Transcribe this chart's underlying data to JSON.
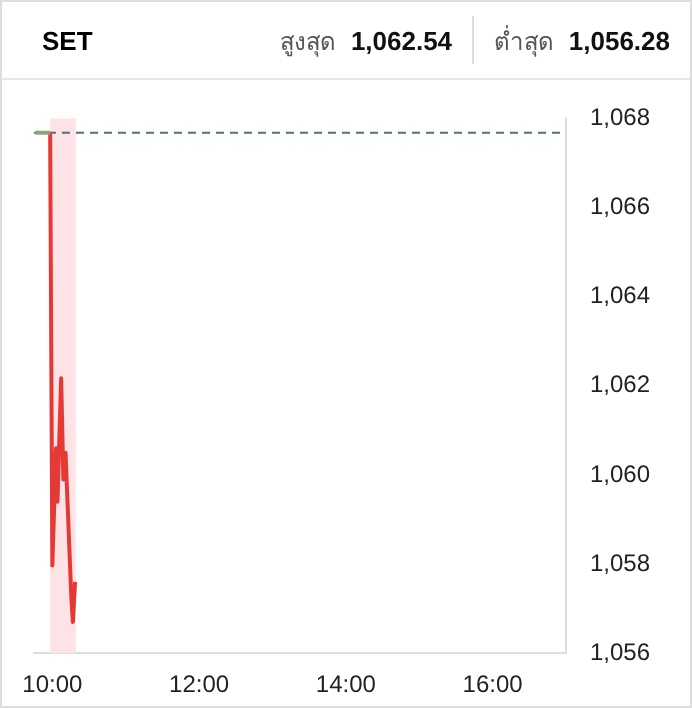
{
  "chart_data": {
    "type": "line",
    "title": "SET",
    "annotations": [
      "สูงสุด 1,062.54",
      "ต่ำสุด 1,056.28"
    ],
    "series": [
      {
        "color": "#8fa67a",
        "x": [
          9.77,
          9.97
        ],
        "values": [
          1067.68,
          1067.68
        ]
      },
      {
        "color": "#e53935",
        "x": [
          9.97,
          10.0,
          10.05,
          10.07,
          10.12,
          10.15,
          10.18,
          10.26,
          10.28,
          10.31
        ],
        "values": [
          1067.68,
          1057.97,
          1060.6,
          1059.4,
          1062.17,
          1059.9,
          1060.5,
          1057.2,
          1056.7,
          1057.6
        ]
      }
    ],
    "xlim": [
      9.75,
      17
    ],
    "xticks": [
      {
        "value": 10,
        "label": "10:00"
      },
      {
        "value": 12,
        "label": "12:00"
      },
      {
        "value": 14,
        "label": "14:00"
      },
      {
        "value": 16,
        "label": "16:00"
      }
    ],
    "ylim": [
      1056,
      1068
    ],
    "yticks": [
      {
        "value": 1056,
        "label": "1,056"
      },
      {
        "value": 1058,
        "label": "1,058"
      },
      {
        "value": 1060,
        "label": "1,060"
      },
      {
        "value": 1062,
        "label": "1,062"
      },
      {
        "value": 1064,
        "label": "1,064"
      },
      {
        "value": 1066,
        "label": "1,066"
      },
      {
        "value": 1068,
        "label": "1,068"
      }
    ],
    "ref_lines": [
      {
        "axis": "y",
        "value": 1067.68,
        "color": "#4f7282",
        "line_style": "dashed"
      }
    ],
    "bands": [
      {
        "axis": "x",
        "from": 9.97,
        "to": 10.32,
        "color": "#fde3e6"
      }
    ],
    "grid": false,
    "legend": false,
    "marker": "none",
    "line_style": "solid"
  }
}
